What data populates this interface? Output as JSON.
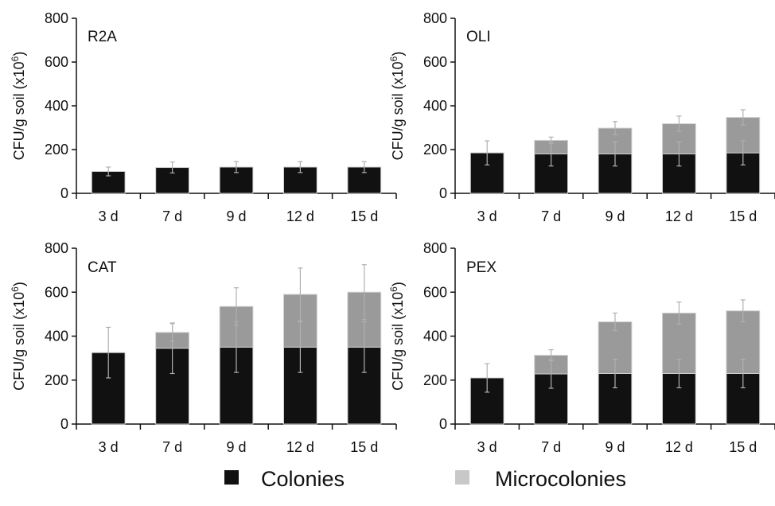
{
  "chart_data": [
    {
      "type": "bar",
      "stacked": true,
      "title": "R2A",
      "ylabel": "CFU/g soil (x10^6)",
      "ylim": [
        0,
        800
      ],
      "yticks": [
        0,
        200,
        400,
        600,
        800
      ],
      "categories": [
        "3 d",
        "7 d",
        "9 d",
        "12 d",
        "15 d"
      ],
      "series": [
        {
          "name": "Colonies",
          "values": [
            100,
            118,
            120,
            120,
            120
          ],
          "error": [
            20,
            25,
            25,
            25,
            25
          ]
        },
        {
          "name": "Microcolonies",
          "values": [
            0,
            0,
            0,
            0,
            0
          ],
          "error": [
            0,
            0,
            0,
            0,
            0
          ]
        }
      ]
    },
    {
      "type": "bar",
      "stacked": true,
      "title": "OLI",
      "ylabel": "CFU/g soil (x10^6)",
      "ylim": [
        0,
        800
      ],
      "yticks": [
        0,
        200,
        400,
        600,
        800
      ],
      "categories": [
        "3 d",
        "7 d",
        "9 d",
        "12 d",
        "15 d"
      ],
      "series": [
        {
          "name": "Colonies",
          "values": [
            185,
            180,
            180,
            180,
            185
          ],
          "error": [
            55,
            55,
            55,
            55,
            55
          ]
        },
        {
          "name": "Microcolonies",
          "values": [
            0,
            62,
            118,
            138,
            162
          ],
          "error": [
            0,
            15,
            30,
            35,
            35
          ]
        }
      ]
    },
    {
      "type": "bar",
      "stacked": true,
      "title": "CAT",
      "ylabel": "CFU/g soil (x10^6)",
      "ylim": [
        0,
        800
      ],
      "yticks": [
        0,
        200,
        400,
        600,
        800
      ],
      "categories": [
        "3 d",
        "7 d",
        "9 d",
        "12 d",
        "15 d"
      ],
      "series": [
        {
          "name": "Colonies",
          "values": [
            325,
            345,
            350,
            350,
            350
          ],
          "error": [
            115,
            115,
            115,
            115,
            115
          ]
        },
        {
          "name": "Microcolonies",
          "values": [
            0,
            72,
            185,
            240,
            250
          ],
          "error": [
            0,
            40,
            85,
            120,
            125
          ]
        }
      ]
    },
    {
      "type": "bar",
      "stacked": true,
      "title": "PEX",
      "ylabel": "CFU/g soil (x10^6)",
      "ylim": [
        0,
        800
      ],
      "yticks": [
        0,
        200,
        400,
        600,
        800
      ],
      "categories": [
        "3 d",
        "7 d",
        "9 d",
        "12 d",
        "15 d"
      ],
      "series": [
        {
          "name": "Colonies",
          "values": [
            210,
            228,
            230,
            230,
            230
          ],
          "error": [
            65,
            65,
            65,
            65,
            65
          ]
        },
        {
          "name": "Microcolonies",
          "values": [
            0,
            85,
            235,
            275,
            285
          ],
          "error": [
            0,
            25,
            40,
            50,
            50
          ]
        }
      ]
    }
  ],
  "legend": {
    "placement": "bottom-center",
    "items": [
      {
        "label": "Colonies",
        "color": "#111111"
      },
      {
        "label": "Microcolonies",
        "color": "#c8c8c8"
      }
    ]
  },
  "colors": {
    "Colonies": "#111111",
    "Microcolonies": "#9a9a9a",
    "bar_outline": "#d0d0d0",
    "error_bar": "#b0b0b0",
    "axis": "#111111"
  }
}
